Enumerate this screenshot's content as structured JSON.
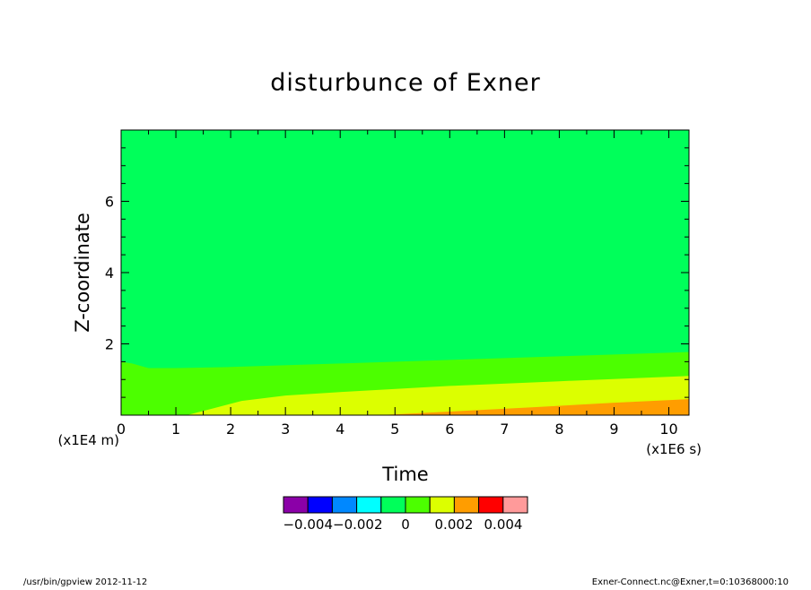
{
  "chart_data": {
    "type": "contour",
    "title": "disturbunce of Exner",
    "xlabel": "Time",
    "ylabel": "Z-coordinate",
    "x_unit": "(x1E6 s)",
    "y_unit": "(x1E4 m)",
    "xlim": [
      0,
      10.368
    ],
    "ylim": [
      0,
      8
    ],
    "x_ticks": [
      "0",
      "1",
      "2",
      "3",
      "4",
      "5",
      "6",
      "7",
      "8",
      "9",
      "10"
    ],
    "y_ticks": [
      "2",
      "4",
      "6"
    ],
    "contour_levels": [
      {
        "range": "< -0.004",
        "color": "#8b00a8"
      },
      {
        "range": "-0.004 to -0.003",
        "color": "#0000ff"
      },
      {
        "range": "-0.003 to -0.002",
        "color": "#0088ff"
      },
      {
        "range": "-0.002 to -0.001",
        "color": "#00ffff"
      },
      {
        "range": "-0.001 to 0",
        "color": "#00ff5a"
      },
      {
        "range": "0 to 0.001",
        "color": "#4cff00"
      },
      {
        "range": "0.001 to 0.002",
        "color": "#dcff00"
      },
      {
        "range": "0.002 to 0.003",
        "color": "#ff9d00"
      },
      {
        "range": "0.003 to 0.004",
        "color": "#ff0000"
      },
      {
        "range": "> 0.004",
        "color": "#ff9a9a"
      }
    ],
    "colorbar_labels": [
      "−0.004−0.002",
      "0",
      "0.002",
      "0.004"
    ],
    "contours": {
      "zero_line": [
        [
          0,
          1.5
        ],
        [
          0.2,
          1.45
        ],
        [
          0.5,
          1.32
        ],
        [
          1,
          1.32
        ],
        [
          2,
          1.35
        ],
        [
          4,
          1.45
        ],
        [
          6,
          1.55
        ],
        [
          8,
          1.65
        ],
        [
          10.368,
          1.77
        ]
      ],
      "level_0.001": [
        [
          1.2,
          0
        ],
        [
          1.7,
          0.2
        ],
        [
          2.2,
          0.4
        ],
        [
          3,
          0.55
        ],
        [
          4,
          0.65
        ],
        [
          6,
          0.82
        ],
        [
          8,
          0.95
        ],
        [
          10.368,
          1.1
        ]
      ],
      "level_0.002": [
        [
          4.7,
          0
        ],
        [
          6,
          0.1
        ],
        [
          7.5,
          0.22
        ],
        [
          9,
          0.35
        ],
        [
          10.368,
          0.45
        ]
      ]
    }
  },
  "footer": {
    "left": "/usr/bin/gpview   2012-11-12",
    "right": "Exner-Connect.nc@Exner,t=0:10368000:10"
  }
}
